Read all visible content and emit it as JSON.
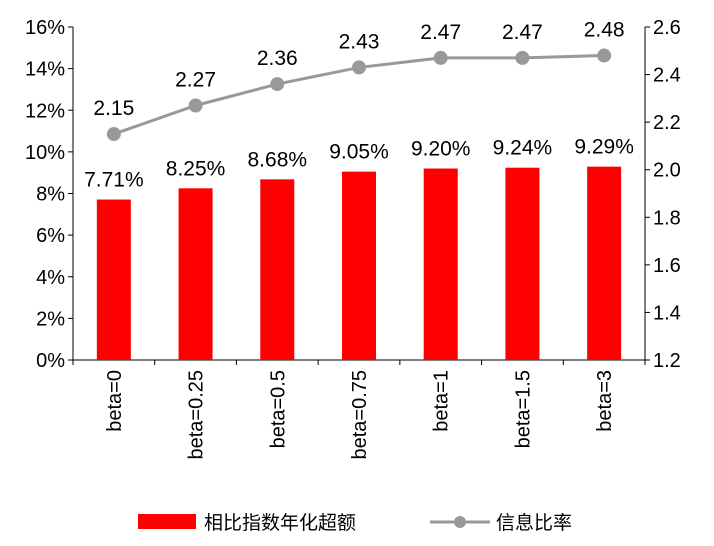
{
  "chart_data": {
    "type": "bar+line",
    "categories": [
      "beta=0",
      "beta=0.25",
      "beta=0.5",
      "beta=0.75",
      "beta=1",
      "beta=1.5",
      "beta=3"
    ],
    "series": [
      {
        "name": "相比指数年化超额",
        "type": "bar",
        "axis": "left",
        "values": [
          7.71,
          8.25,
          8.68,
          9.05,
          9.2,
          9.24,
          9.29
        ],
        "labels": [
          "7.71%",
          "8.25%",
          "8.68%",
          "9.05%",
          "9.20%",
          "9.24%",
          "9.29%"
        ],
        "color": "#FF0000"
      },
      {
        "name": "信息比率",
        "type": "line",
        "axis": "right",
        "values": [
          2.15,
          2.27,
          2.36,
          2.43,
          2.47,
          2.47,
          2.48
        ],
        "labels": [
          "2.15",
          "2.27",
          "2.36",
          "2.43",
          "2.47",
          "2.47",
          "2.48"
        ],
        "color": "#999999"
      }
    ],
    "left_axis": {
      "min": 0,
      "max": 16,
      "step": 2,
      "tick_labels": [
        "0%",
        "2%",
        "4%",
        "6%",
        "8%",
        "10%",
        "12%",
        "14%",
        "16%"
      ]
    },
    "right_axis": {
      "min": 1.2,
      "max": 2.6,
      "step": 0.2,
      "tick_labels": [
        "1.2",
        "1.4",
        "1.6",
        "1.8",
        "2.0",
        "2.2",
        "2.4",
        "2.6"
      ]
    },
    "grid": false,
    "legend_position": "bottom"
  }
}
